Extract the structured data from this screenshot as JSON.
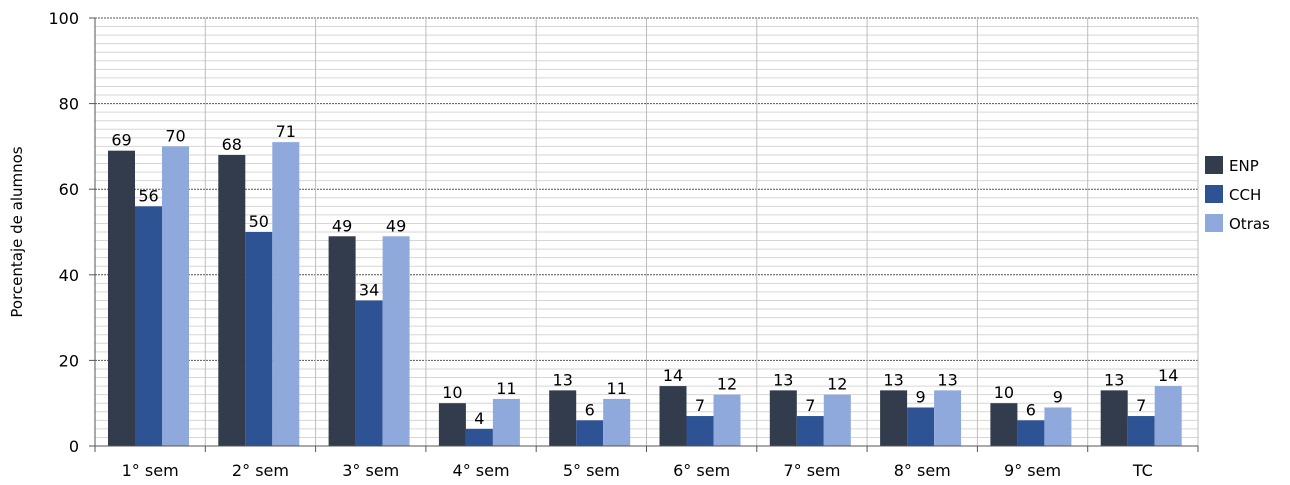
{
  "chart_data": {
    "type": "bar",
    "title": "",
    "xlabel": "",
    "ylabel": "Porcentaje de alumnos",
    "ylim": [
      0,
      100
    ],
    "yticks": [
      0,
      20,
      40,
      60,
      80,
      100
    ],
    "grid": true,
    "legend_position": "right",
    "categories": [
      "1° sem",
      "2° sem",
      "3° sem",
      "4° sem",
      "5° sem",
      "6° sem",
      "7° sem",
      "8° sem",
      "9° sem",
      "TC"
    ],
    "series": [
      {
        "name": "ENP",
        "color": "#323c4d",
        "values": [
          69,
          68,
          49,
          10,
          13,
          14,
          13,
          13,
          10,
          13
        ]
      },
      {
        "name": "CCH",
        "color": "#2e5394",
        "values": [
          56,
          50,
          34,
          4,
          6,
          7,
          7,
          9,
          6,
          7
        ]
      },
      {
        "name": "Otras",
        "color": "#8fa9dc",
        "values": [
          70,
          71,
          49,
          11,
          11,
          12,
          12,
          13,
          9,
          14
        ]
      }
    ]
  }
}
